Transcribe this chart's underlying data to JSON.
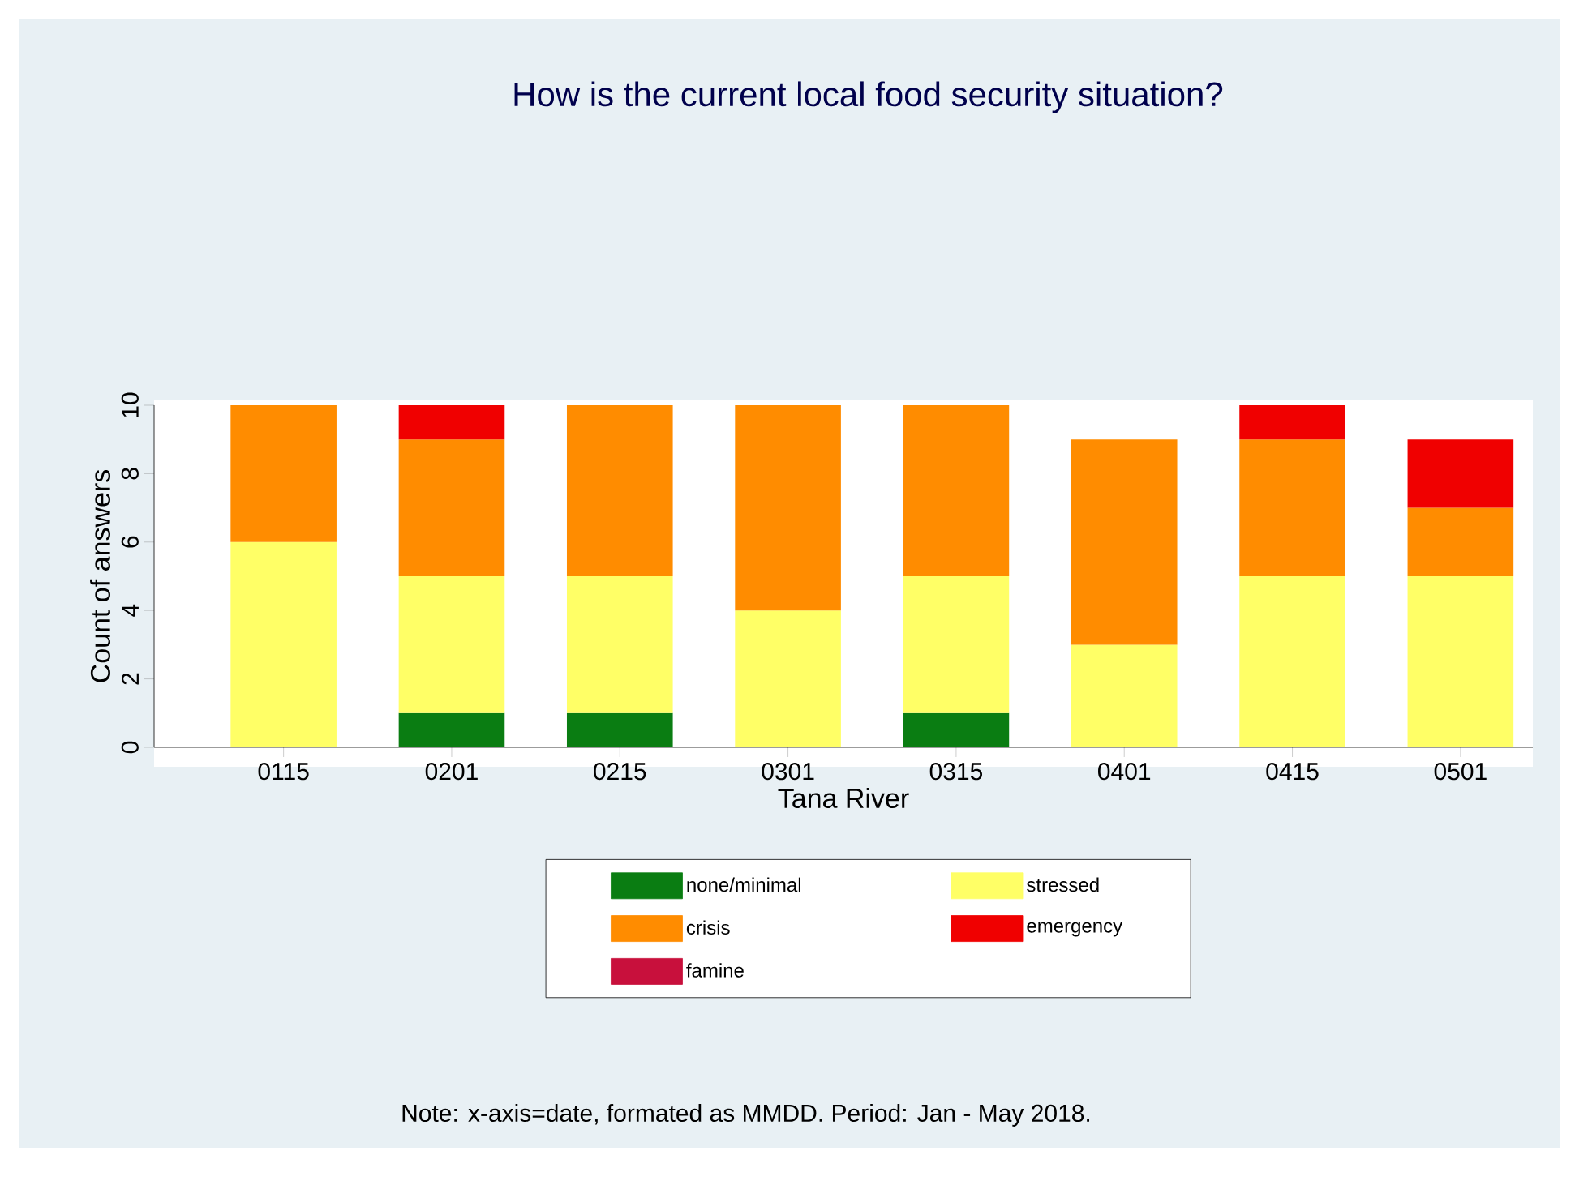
{
  "chart_data": {
    "type": "bar",
    "stacked": true,
    "title": "How is the current local food security situation?",
    "xlabel": "Tana River",
    "ylabel": "Count of answers",
    "categories": [
      "0115",
      "0201",
      "0215",
      "0301",
      "0315",
      "0401",
      "0415",
      "0501"
    ],
    "series": [
      {
        "name": "none/minimal",
        "color": "#0a7d12",
        "values": [
          0,
          1,
          1,
          0,
          1,
          0,
          0,
          0
        ]
      },
      {
        "name": "stressed",
        "color": "#ffff66",
        "values": [
          6,
          4,
          4,
          4,
          4,
          3,
          5,
          5
        ]
      },
      {
        "name": "crisis",
        "color": "#ff8c00",
        "values": [
          4,
          4,
          5,
          6,
          5,
          6,
          4,
          2
        ]
      },
      {
        "name": "emergency",
        "color": "#f00000",
        "values": [
          0,
          1,
          0,
          0,
          0,
          0,
          1,
          2
        ]
      },
      {
        "name": "famine",
        "color": "#c8103c",
        "values": [
          0,
          0,
          0,
          0,
          0,
          0,
          0,
          0
        ]
      }
    ],
    "ylim": [
      0,
      10
    ],
    "yticks": [
      0,
      2,
      4,
      6,
      8,
      10
    ],
    "grid": false,
    "legend": "bottom",
    "annotations": [
      "Note: x-axis=date, formated as MMDD. Period: Jan - May 2018."
    ]
  }
}
